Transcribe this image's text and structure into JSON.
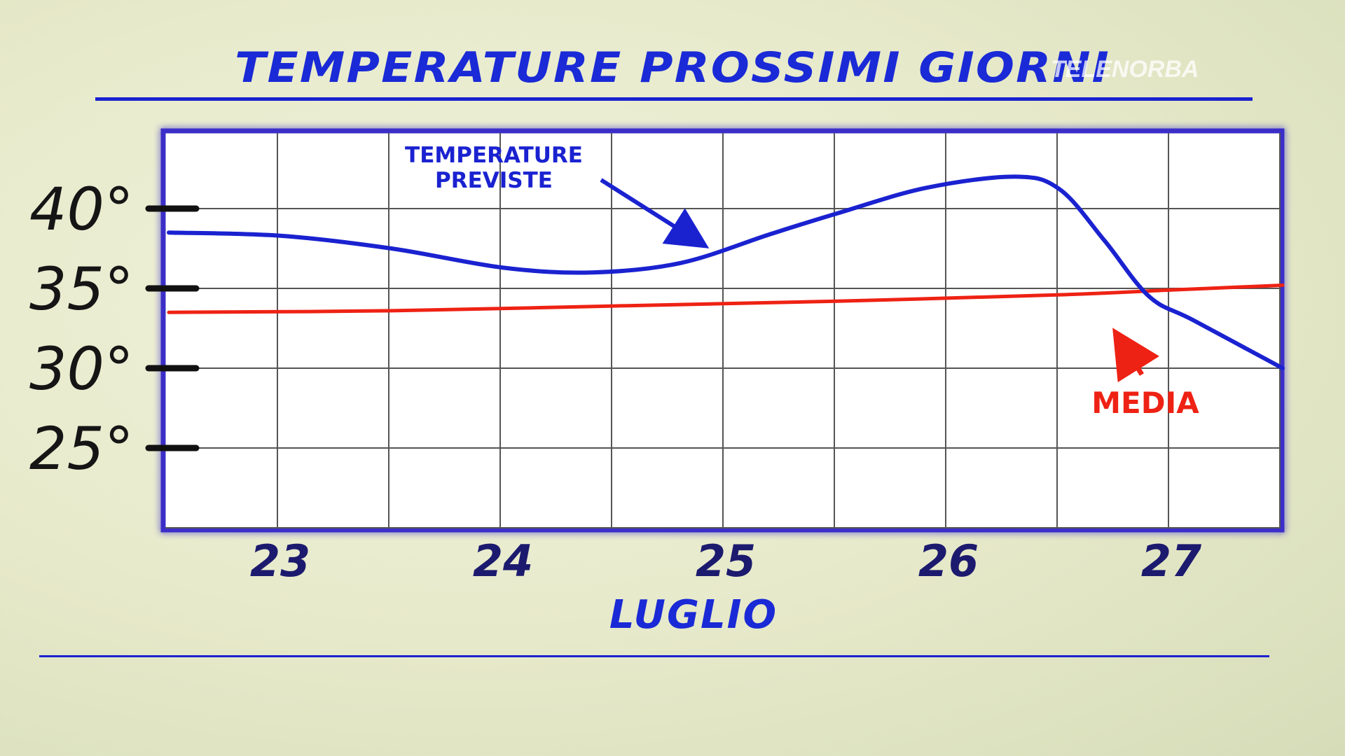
{
  "title": "TEMPERATURE PROSSIMI GIORNI",
  "watermark": "TELENORBA",
  "colors": {
    "title": "#1a2ad6",
    "forecast_line": "#1a22d0",
    "average_line": "#ee2214",
    "grid": "#555555",
    "frame": "#3a2ec8",
    "tick_text": "#151515",
    "day_text": "#1c1a6e"
  },
  "chart_data": {
    "type": "line",
    "title": "TEMPERATURE PROSSIMI GIORNI",
    "xlabel": "LUGLIO",
    "ylabel": "",
    "x_ticks": [
      "23",
      "24",
      "25",
      "26",
      "27"
    ],
    "y_ticks": [
      "25°",
      "30°",
      "35°",
      "40°"
    ],
    "y_tick_values": [
      25,
      30,
      35,
      40
    ],
    "xlim": [
      22.5,
      27.5
    ],
    "ylim": [
      20,
      45
    ],
    "grid": true,
    "series": [
      {
        "name": "TEMPERATURE PREVISTE",
        "color": "#1a22d0",
        "x": [
          22.5,
          23.0,
          23.5,
          24.0,
          24.4,
          24.8,
          25.2,
          25.5,
          25.9,
          26.3,
          26.5,
          26.7,
          26.9,
          27.1,
          27.5
        ],
        "y": [
          38.5,
          38.3,
          37.5,
          36.3,
          36.0,
          36.6,
          38.4,
          39.7,
          41.3,
          42.0,
          41.2,
          38.0,
          34.5,
          33.0,
          30.0
        ]
      },
      {
        "name": "MEDIA",
        "color": "#ee2214",
        "x": [
          22.5,
          23.5,
          24.5,
          25.5,
          26.5,
          27.0,
          27.5
        ],
        "y": [
          33.5,
          33.6,
          33.9,
          34.2,
          34.6,
          34.9,
          35.2
        ]
      }
    ],
    "annotations": [
      "TEMPERATURE PREVISTE",
      "MEDIA"
    ]
  }
}
